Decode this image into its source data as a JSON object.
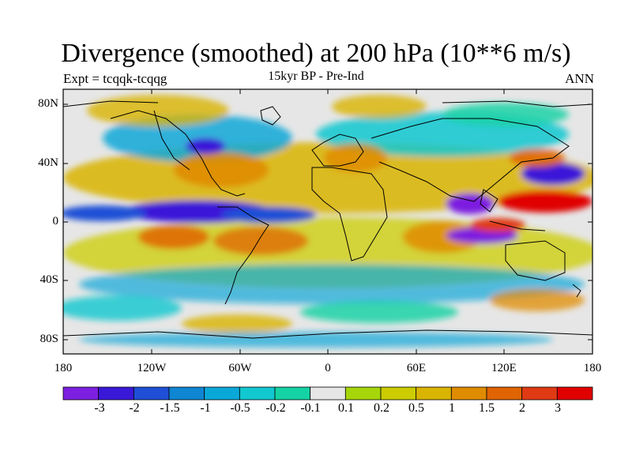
{
  "title": "Divergence (smoothed) at 200 hPa (10**6 m/s)",
  "subtitle_left": "Expt = tcqqk-tcqqg",
  "subtitle_center": "15kyr BP - Pre-Ind",
  "subtitle_right": "ANN",
  "lat_labels": [
    "80N",
    "40N",
    "0",
    "40S",
    "80S"
  ],
  "lon_labels": [
    "180",
    "120W",
    "60W",
    "0",
    "60E",
    "120E",
    "180"
  ],
  "colorbar": {
    "colors": [
      "#7d1fe0",
      "#3a18d8",
      "#1e4fd6",
      "#0f86d2",
      "#0aa8d8",
      "#11c8d0",
      "#14d2a4",
      "#e6e6e6",
      "#a6d60a",
      "#cccc00",
      "#d9b400",
      "#e08c00",
      "#e06400",
      "#e03a14",
      "#e00000"
    ],
    "tick_labels": [
      "-3",
      "-2",
      "-1.5",
      "-1",
      "-0.5",
      "-0.2",
      "-0.1",
      "0.1",
      "0.2",
      "0.5",
      "1",
      "1.5",
      "2",
      "3"
    ]
  }
}
